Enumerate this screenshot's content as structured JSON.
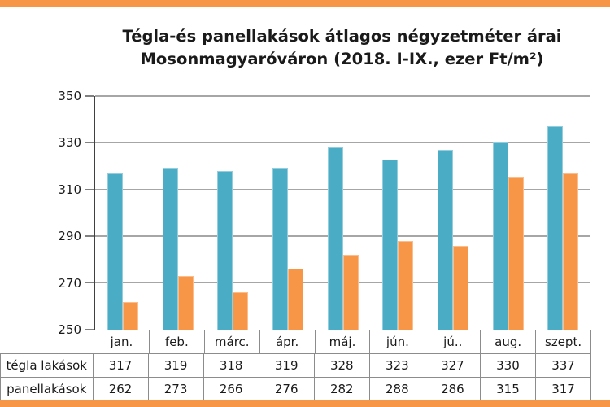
{
  "accent": {
    "color": "#F79646"
  },
  "title": {
    "line1": "Tégla-és panellakások átlagos négyzetméter árai",
    "line2": "Mosonmagyaróváron (2018. I-IX., ezer Ft/m²)"
  },
  "chart_data": {
    "type": "bar",
    "title": "Tégla-és panellakások átlagos négyzetméter árai Mosonmagyaróváron (2018. I-IX., ezer Ft/m²)",
    "categories": [
      "jan.",
      "feb.",
      "márc.",
      "ápr.",
      "máj.",
      "jún.",
      "jú..",
      "aug.",
      "szept."
    ],
    "series": [
      {
        "name": "tégla lakások",
        "color": "#4BACC6",
        "edge_color": "#93CDDE",
        "values": [
          317,
          319,
          318,
          319,
          328,
          323,
          327,
          330,
          337
        ]
      },
      {
        "name": "panellakások",
        "color": "#F79646",
        "edge_color": "#FBBD8B",
        "values": [
          262,
          273,
          266,
          276,
          282,
          288,
          286,
          315,
          317
        ]
      }
    ],
    "ylim": [
      250,
      350
    ],
    "yticks": [
      250,
      270,
      290,
      310,
      330,
      350
    ],
    "grid": true,
    "gridline_color": "#A6A6A6",
    "axis_color": "#404040",
    "tick_color": "#808080",
    "legend_position": "table-below"
  },
  "table": {
    "border_color": "#8C8C8C"
  }
}
